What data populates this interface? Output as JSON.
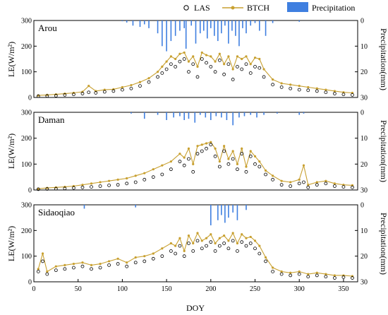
{
  "chart_data": [
    {
      "type": "scatter",
      "title": "Arou",
      "xlim": [
        0,
        366
      ],
      "ylim": [
        0,
        300
      ],
      "ylim_right": [
        30,
        0
      ],
      "right_axis_inverted": true,
      "yticks": [
        0,
        100,
        200,
        300
      ],
      "yticks_right": [
        0,
        10,
        20,
        30
      ],
      "ylabel": "LE(W/m²)",
      "ylabel_right": "Precipitation(mm)",
      "series": [
        {
          "name": "LAS",
          "kind": "scatter",
          "color": "#000000",
          "x": [
            5,
            15,
            25,
            35,
            45,
            55,
            62,
            70,
            80,
            90,
            100,
            110,
            120,
            130,
            140,
            145,
            150,
            155,
            160,
            165,
            170,
            175,
            180,
            185,
            190,
            195,
            200,
            205,
            210,
            215,
            220,
            225,
            230,
            235,
            240,
            245,
            250,
            255,
            260,
            270,
            280,
            290,
            300,
            310,
            320,
            330,
            340,
            350,
            360
          ],
          "y": [
            5,
            6,
            7,
            10,
            12,
            15,
            20,
            18,
            22,
            25,
            30,
            35,
            45,
            60,
            80,
            95,
            110,
            130,
            120,
            140,
            150,
            100,
            130,
            80,
            150,
            135,
            120,
            100,
            145,
            90,
            130,
            70,
            120,
            110,
            130,
            95,
            120,
            115,
            80,
            50,
            40,
            35,
            30,
            28,
            25,
            20,
            15,
            12,
            10
          ]
        },
        {
          "name": "BTCH",
          "kind": "line-marker",
          "color": "#C8A030",
          "x": [
            5,
            15,
            25,
            35,
            45,
            55,
            62,
            70,
            80,
            90,
            100,
            110,
            120,
            130,
            140,
            145,
            150,
            155,
            160,
            165,
            170,
            175,
            180,
            185,
            190,
            195,
            200,
            205,
            210,
            215,
            220,
            225,
            230,
            235,
            240,
            245,
            250,
            255,
            260,
            270,
            280,
            290,
            300,
            310,
            320,
            330,
            340,
            350,
            360
          ],
          "y": [
            8,
            10,
            12,
            15,
            18,
            22,
            45,
            25,
            30,
            32,
            40,
            48,
            60,
            75,
            100,
            120,
            140,
            160,
            150,
            170,
            175,
            140,
            160,
            120,
            175,
            165,
            160,
            140,
            170,
            130,
            160,
            110,
            160,
            150,
            160,
            130,
            155,
            150,
            110,
            70,
            55,
            50,
            45,
            40,
            35,
            30,
            25,
            20,
            18
          ]
        },
        {
          "name": "Precipitation",
          "kind": "bar-downward",
          "color": "#3F7FE0",
          "x": [
            100,
            105,
            112,
            120,
            125,
            130,
            140,
            145,
            150,
            155,
            160,
            165,
            170,
            172,
            178,
            183,
            188,
            192,
            196,
            200,
            204,
            208,
            212,
            216,
            220,
            224,
            228,
            232,
            236,
            240,
            245,
            250,
            255,
            262,
            270,
            300
          ],
          "y": [
            0.3,
            0.8,
            2,
            2.5,
            1.5,
            3,
            5,
            10,
            12,
            8,
            6,
            4,
            3,
            11,
            2,
            9,
            5,
            4,
            7,
            3,
            6,
            8,
            5,
            2,
            9,
            4,
            6,
            10,
            3,
            5,
            2,
            1,
            4,
            6,
            1,
            0.5
          ]
        }
      ]
    },
    {
      "type": "scatter",
      "title": "Daman",
      "xlim": [
        0,
        366
      ],
      "ylim": [
        0,
        300
      ],
      "ylim_right": [
        30,
        0
      ],
      "right_axis_inverted": true,
      "yticks": [
        0,
        100,
        200,
        300
      ],
      "yticks_right": [
        0,
        10,
        20,
        30
      ],
      "ylabel": "LE(W/m²)",
      "ylabel_right": "Precipitation(mm)",
      "series": [
        {
          "name": "LAS",
          "kind": "scatter",
          "color": "#000000",
          "x": [
            5,
            15,
            25,
            35,
            45,
            55,
            65,
            75,
            85,
            95,
            105,
            115,
            125,
            135,
            145,
            155,
            165,
            170,
            175,
            180,
            185,
            190,
            195,
            200,
            205,
            210,
            215,
            220,
            225,
            230,
            235,
            240,
            245,
            250,
            255,
            262,
            270,
            280,
            290,
            300,
            305,
            310,
            320,
            330,
            340,
            350,
            360
          ],
          "y": [
            3,
            4,
            5,
            6,
            8,
            10,
            12,
            15,
            18,
            20,
            25,
            30,
            40,
            50,
            60,
            80,
            110,
            95,
            120,
            70,
            140,
            150,
            160,
            175,
            130,
            90,
            150,
            100,
            120,
            80,
            140,
            70,
            130,
            100,
            90,
            60,
            40,
            20,
            15,
            25,
            30,
            10,
            20,
            25,
            15,
            12,
            10
          ]
        },
        {
          "name": "BTCH",
          "kind": "line-marker",
          "color": "#C8A030",
          "x": [
            5,
            15,
            25,
            35,
            45,
            55,
            65,
            75,
            85,
            95,
            105,
            115,
            125,
            135,
            145,
            155,
            165,
            170,
            175,
            180,
            185,
            190,
            195,
            200,
            205,
            210,
            215,
            220,
            225,
            230,
            235,
            240,
            245,
            250,
            255,
            262,
            270,
            280,
            290,
            300,
            305,
            310,
            320,
            330,
            340,
            350,
            360
          ],
          "y": [
            5,
            8,
            10,
            12,
            15,
            20,
            25,
            30,
            35,
            40,
            45,
            55,
            65,
            80,
            95,
            110,
            140,
            125,
            160,
            100,
            170,
            175,
            180,
            185,
            160,
            110,
            170,
            120,
            150,
            100,
            160,
            90,
            150,
            130,
            110,
            75,
            55,
            35,
            30,
            40,
            95,
            20,
            30,
            35,
            25,
            20,
            18
          ]
        },
        {
          "name": "Precipitation",
          "kind": "bar-downward",
          "color": "#3F7FE0",
          "x": [
            110,
            125,
            140,
            150,
            158,
            165,
            170,
            175,
            182,
            188,
            194,
            200,
            206,
            212,
            218,
            225,
            232,
            238,
            245,
            252,
            260,
            275,
            300,
            305
          ],
          "y": [
            0.5,
            2.5,
            1,
            3,
            2,
            1.5,
            3,
            2.5,
            4,
            1,
            2,
            3,
            1.5,
            2,
            3,
            5,
            2,
            1.5,
            1,
            2,
            1,
            0.5,
            1,
            0.5
          ]
        }
      ]
    },
    {
      "type": "scatter",
      "title": "Sidaoqiao",
      "xlim": [
        0,
        366
      ],
      "ylim": [
        0,
        300
      ],
      "ylim_right": [
        30,
        0
      ],
      "right_axis_inverted": true,
      "yticks": [
        0,
        100,
        200,
        300
      ],
      "yticks_right": [
        0,
        10,
        20,
        30
      ],
      "xticks": [
        0,
        50,
        100,
        150,
        200,
        250,
        300,
        350
      ],
      "xlabel": "DOY",
      "ylabel": "LE(W/m²)",
      "ylabel_right": "Precipitation(mm)",
      "series": [
        {
          "name": "LAS",
          "kind": "scatter",
          "color": "#000000",
          "x": [
            5,
            10,
            15,
            25,
            35,
            45,
            55,
            65,
            75,
            85,
            95,
            105,
            115,
            125,
            135,
            145,
            155,
            160,
            165,
            170,
            175,
            180,
            185,
            190,
            195,
            200,
            205,
            210,
            215,
            220,
            225,
            230,
            235,
            240,
            245,
            250,
            255,
            262,
            270,
            280,
            290,
            300,
            310,
            320,
            330,
            340,
            350,
            360
          ],
          "y": [
            40,
            80,
            30,
            45,
            50,
            55,
            60,
            50,
            55,
            65,
            70,
            60,
            75,
            80,
            90,
            100,
            120,
            110,
            140,
            100,
            150,
            120,
            160,
            130,
            140,
            155,
            120,
            140,
            150,
            130,
            160,
            120,
            155,
            140,
            150,
            130,
            110,
            80,
            40,
            30,
            25,
            30,
            20,
            25,
            20,
            15,
            18,
            15
          ]
        },
        {
          "name": "BTCH",
          "kind": "line-marker",
          "color": "#C8A030",
          "x": [
            5,
            10,
            15,
            25,
            35,
            45,
            55,
            65,
            75,
            85,
            95,
            105,
            115,
            125,
            135,
            145,
            155,
            160,
            165,
            170,
            175,
            180,
            185,
            190,
            195,
            200,
            205,
            210,
            215,
            220,
            225,
            230,
            235,
            240,
            245,
            250,
            255,
            262,
            270,
            280,
            290,
            300,
            310,
            320,
            330,
            340,
            350,
            360
          ],
          "y": [
            50,
            110,
            40,
            60,
            65,
            70,
            75,
            65,
            70,
            80,
            90,
            75,
            95,
            100,
            110,
            130,
            150,
            140,
            170,
            120,
            180,
            150,
            190,
            160,
            170,
            185,
            150,
            170,
            180,
            160,
            190,
            150,
            185,
            170,
            175,
            160,
            140,
            95,
            55,
            40,
            35,
            40,
            30,
            35,
            30,
            25,
            25,
            22
          ]
        },
        {
          "name": "Precipitation",
          "kind": "bar-downward",
          "color": "#3F7FE0",
          "x": [
            57,
            115,
            200,
            208,
            212,
            216,
            220,
            225,
            230,
            240
          ],
          "y": [
            1.5,
            1,
            8,
            6,
            4,
            7,
            5,
            3,
            6,
            2
          ]
        }
      ]
    }
  ],
  "legend": {
    "placement": "top-right",
    "items": [
      {
        "label": "LAS"
      },
      {
        "label": "BTCH"
      },
      {
        "label": "Precipitation"
      }
    ]
  }
}
